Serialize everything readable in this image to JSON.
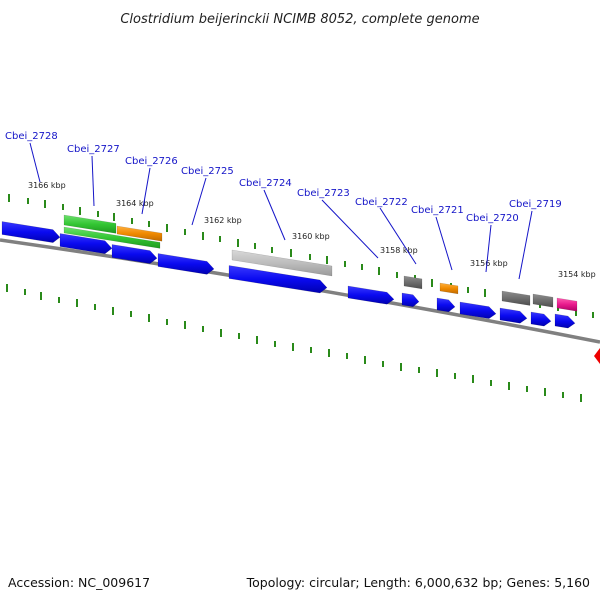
{
  "title": "Clostridium beijerinckii NCIMB 8052, complete genome",
  "footer": {
    "accession": "Accession: NC_009617",
    "summary": "Topology: circular; Length: 6,000,632 bp; Genes: 5,160"
  },
  "colors": {
    "cds": "#0a0af0",
    "rna_green": "#33c633",
    "orange": "#f08a00",
    "gray_light": "#bdbdbd",
    "gray_dark": "#6e6e6e",
    "magenta": "#e8198c",
    "backbone": "#808080",
    "gc_tick": "#2a8a1a",
    "marker": "#ee0000"
  },
  "kbp_labels": [
    "3166 kbp",
    "3164 kbp",
    "3162 kbp",
    "3160 kbp",
    "3158 kbp",
    "3156 kbp",
    "3154 kbp"
  ],
  "gene_labels": [
    "Cbei_2728",
    "Cbei_2727",
    "Cbei_2726",
    "Cbei_2725",
    "Cbei_2724",
    "Cbei_2723",
    "Cbei_2722",
    "Cbei_2721",
    "Cbei_2720",
    "Cbei_2719"
  ]
}
